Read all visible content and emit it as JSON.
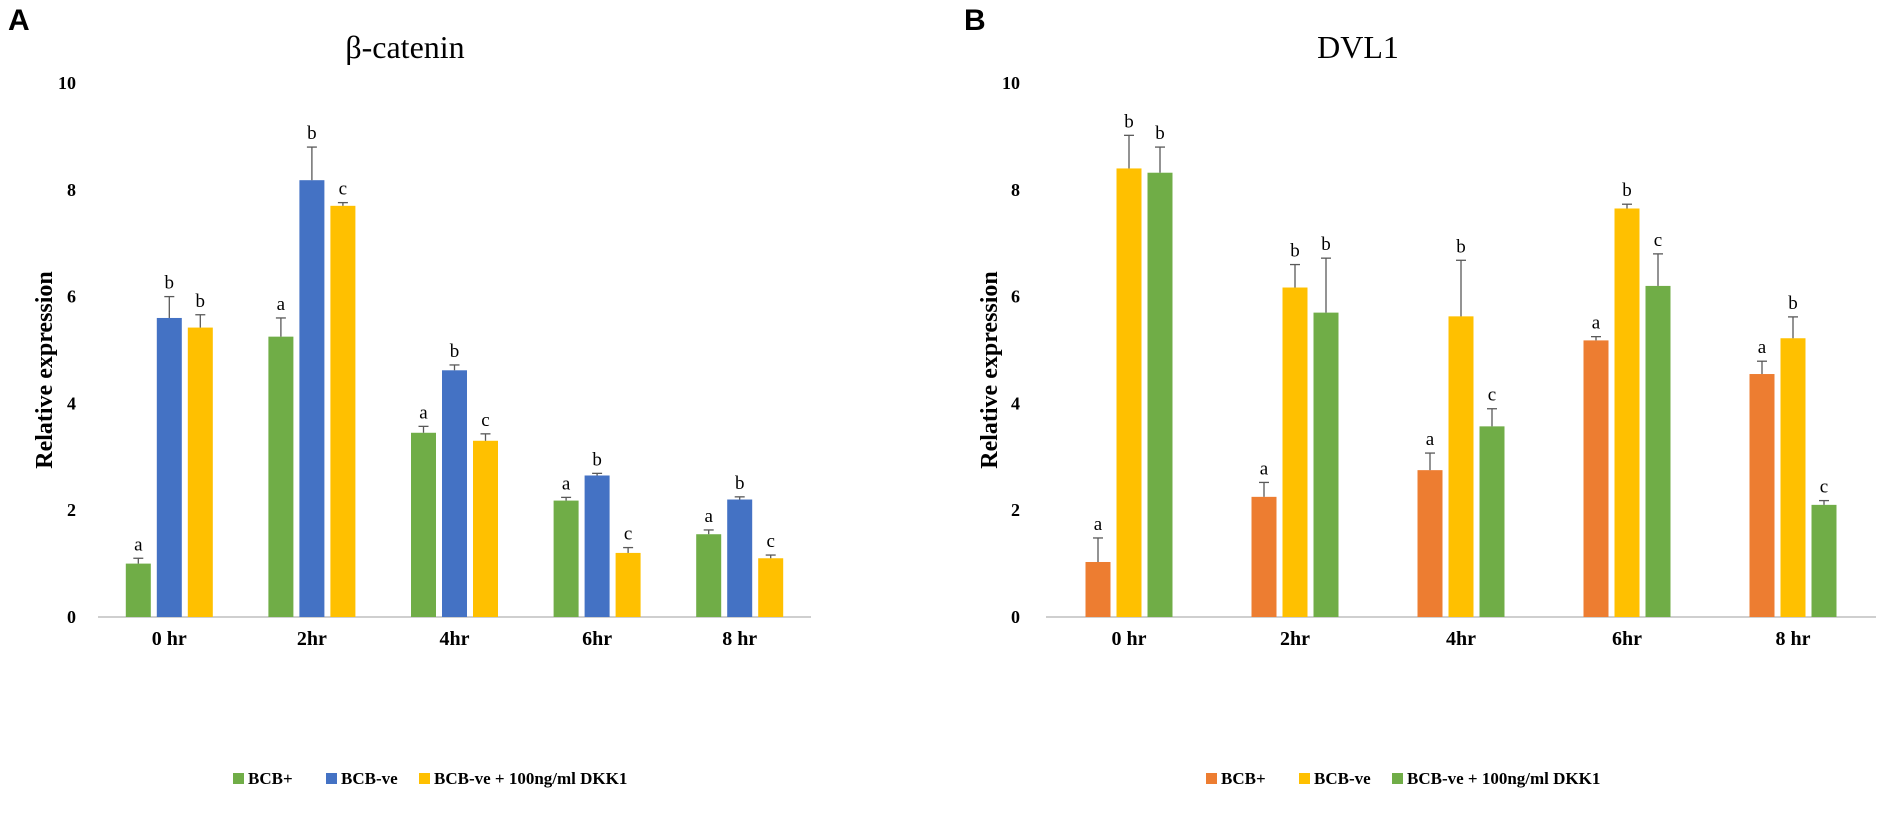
{
  "chart_data": [
    {
      "panel": "A",
      "type": "bar",
      "title": "β-catenin",
      "ylabel": "Relative expression",
      "xlabel": "",
      "ylim": [
        0,
        10
      ],
      "yticks": [
        0,
        2,
        4,
        6,
        8,
        10
      ],
      "grid": false,
      "legend_position": "bottom",
      "categories": [
        "0 hr",
        "2hr",
        "4hr",
        "6hr",
        "8 hr"
      ],
      "series": [
        {
          "name": "BCB+",
          "color": "#70AD47",
          "values": [
            1.0,
            5.25,
            3.45,
            2.18,
            1.55
          ],
          "errors": [
            0.1,
            0.35,
            0.12,
            0.06,
            0.08
          ],
          "letters": [
            "a",
            "a",
            "a",
            "a",
            "a"
          ]
        },
        {
          "name": "BCB-ve",
          "color": "#4472C4",
          "values": [
            5.6,
            8.18,
            4.62,
            2.65,
            2.2
          ],
          "errors": [
            0.4,
            0.62,
            0.1,
            0.04,
            0.05
          ],
          "letters": [
            "b",
            "b",
            "b",
            "b",
            "b"
          ]
        },
        {
          "name": "BCB-ve + 100ng/ml DKK1",
          "color": "#FFC000",
          "values": [
            5.42,
            7.7,
            3.3,
            1.2,
            1.1
          ],
          "errors": [
            0.24,
            0.06,
            0.13,
            0.1,
            0.06
          ],
          "letters": [
            "b",
            "c",
            "c",
            "c",
            "c"
          ]
        }
      ]
    },
    {
      "panel": "B",
      "type": "bar",
      "title": "DVL1",
      "ylabel": "Relative expression",
      "xlabel": "",
      "ylim": [
        0,
        10
      ],
      "yticks": [
        0,
        2,
        4,
        6,
        8,
        10
      ],
      "grid": false,
      "legend_position": "bottom",
      "categories": [
        "0 hr",
        "2hr",
        "4hr",
        "6hr",
        "8 hr"
      ],
      "series": [
        {
          "name": "BCB+",
          "color": "#ED7D31",
          "values": [
            1.03,
            2.25,
            2.75,
            5.18,
            4.55
          ],
          "errors": [
            0.45,
            0.27,
            0.32,
            0.07,
            0.24
          ],
          "letters": [
            "a",
            "a",
            "a",
            "a",
            "a"
          ]
        },
        {
          "name": "BCB-ve",
          "color": "#FFC000",
          "values": [
            8.4,
            6.17,
            5.63,
            7.65,
            5.22
          ],
          "errors": [
            0.62,
            0.43,
            1.05,
            0.08,
            0.4
          ],
          "letters": [
            "b",
            "b",
            "b",
            "b",
            "b"
          ]
        },
        {
          "name": "BCB-ve + 100ng/ml DKK1",
          "color": "#70AD47",
          "values": [
            8.32,
            5.7,
            3.57,
            6.2,
            2.1
          ],
          "errors": [
            0.48,
            1.02,
            0.33,
            0.6,
            0.08
          ],
          "letters": [
            "b",
            "b",
            "c",
            "c",
            "c"
          ]
        }
      ]
    }
  ]
}
